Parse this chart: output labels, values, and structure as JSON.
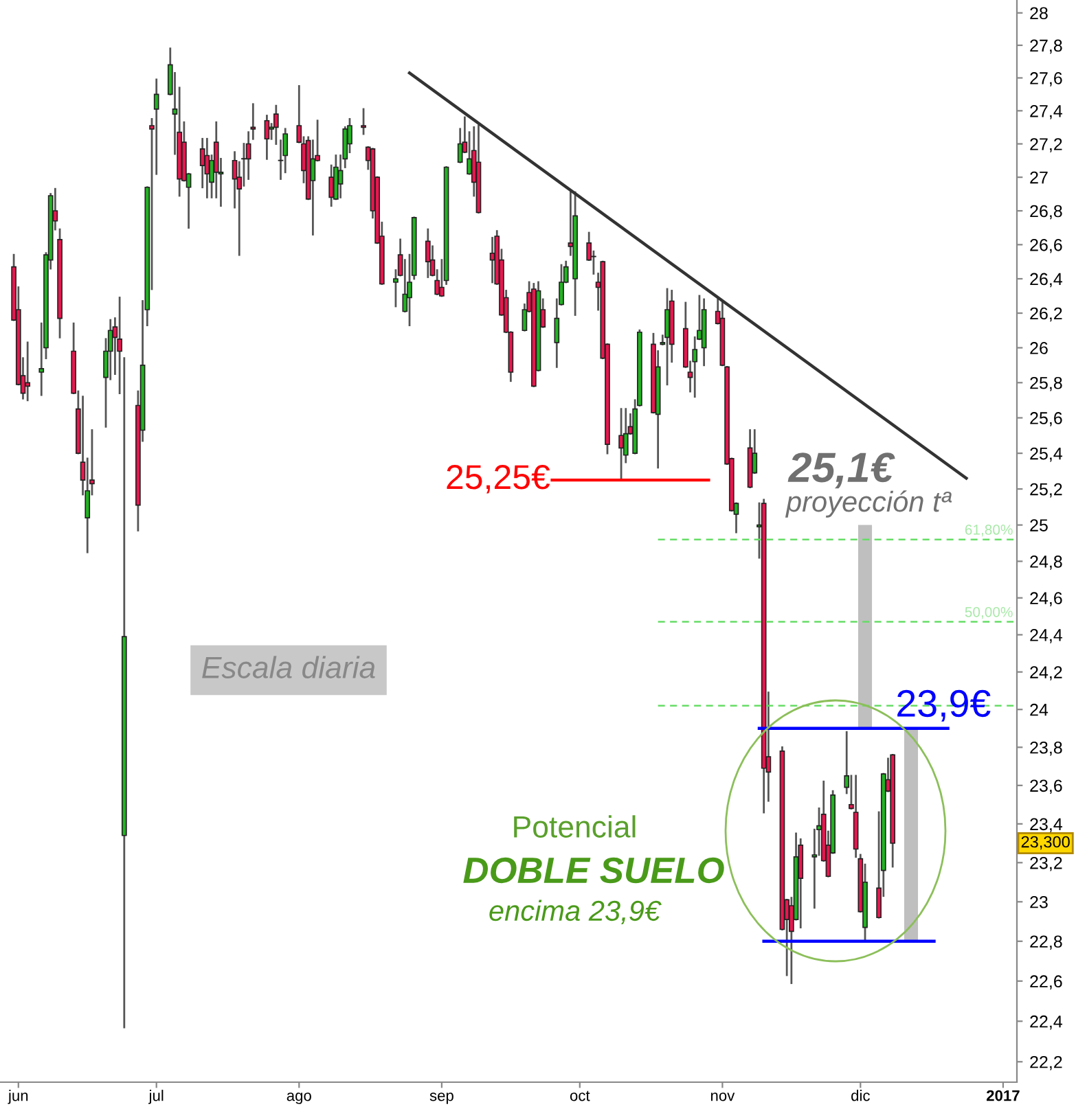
{
  "chart_data": {
    "type": "candlestick",
    "x": [
      "2016-05-31",
      "2016-06-01",
      "2016-06-02",
      "2016-06-03",
      "2016-06-06",
      "2016-06-07",
      "2016-06-08",
      "2016-06-09",
      "2016-06-10",
      "2016-06-13",
      "2016-06-14",
      "2016-06-15",
      "2016-06-16",
      "2016-06-17",
      "2016-06-20",
      "2016-06-21",
      "2016-06-22",
      "2016-06-23",
      "2016-06-24",
      "2016-06-27",
      "2016-06-28",
      "2016-06-29",
      "2016-06-30",
      "2016-07-01",
      "2016-07-04",
      "2016-07-05",
      "2016-07-06",
      "2016-07-07",
      "2016-07-08",
      "2016-07-11",
      "2016-07-12",
      "2016-07-13",
      "2016-07-14",
      "2016-07-15",
      "2016-07-18",
      "2016-07-19",
      "2016-07-20",
      "2016-07-21",
      "2016-07-22",
      "2016-07-25",
      "2016-07-26",
      "2016-07-27",
      "2016-07-28",
      "2016-07-29",
      "2016-08-01",
      "2016-08-02",
      "2016-08-03",
      "2016-08-04",
      "2016-08-05",
      "2016-08-08",
      "2016-08-09",
      "2016-08-10",
      "2016-08-11",
      "2016-08-12",
      "2016-08-15",
      "2016-08-16",
      "2016-08-17",
      "2016-08-18",
      "2016-08-19",
      "2016-08-22",
      "2016-08-23",
      "2016-08-24",
      "2016-08-25",
      "2016-08-26",
      "2016-08-29",
      "2016-08-30",
      "2016-08-31",
      "2016-09-01",
      "2016-09-02",
      "2016-09-05",
      "2016-09-06",
      "2016-09-07",
      "2016-09-08",
      "2016-09-09",
      "2016-09-12",
      "2016-09-13",
      "2016-09-14",
      "2016-09-15",
      "2016-09-16",
      "2016-09-19",
      "2016-09-20",
      "2016-09-21",
      "2016-09-22",
      "2016-09-23",
      "2016-09-26",
      "2016-09-27",
      "2016-09-28",
      "2016-09-29",
      "2016-09-30",
      "2016-10-03",
      "2016-10-04",
      "2016-10-05",
      "2016-10-06",
      "2016-10-07",
      "2016-10-10",
      "2016-10-11",
      "2016-10-12",
      "2016-10-13",
      "2016-10-14",
      "2016-10-17",
      "2016-10-18",
      "2016-10-19",
      "2016-10-20",
      "2016-10-21",
      "2016-10-24",
      "2016-10-25",
      "2016-10-26",
      "2016-10-27",
      "2016-10-28",
      "2016-10-31",
      "2016-11-01",
      "2016-11-02",
      "2016-11-03",
      "2016-11-04",
      "2016-11-07",
      "2016-11-08",
      "2016-11-09",
      "2016-11-10",
      "2016-11-11",
      "2016-11-14",
      "2016-11-15",
      "2016-11-16",
      "2016-11-17",
      "2016-11-18",
      "2016-11-21",
      "2016-11-22",
      "2016-11-23",
      "2016-11-24",
      "2016-11-25",
      "2016-11-28",
      "2016-11-29",
      "2016-11-30",
      "2016-12-01",
      "2016-12-02",
      "2016-12-05",
      "2016-12-06",
      "2016-12-07",
      "2016-12-08"
    ],
    "ohlc": [
      [
        26.47,
        26.54,
        26.16,
        26.16
      ],
      [
        26.22,
        26.35,
        25.79,
        25.79
      ],
      [
        25.84,
        25.94,
        25.71,
        25.74
      ],
      [
        25.8,
        26.03,
        25.7,
        25.78
      ],
      [
        25.86,
        26.14,
        25.73,
        25.88
      ],
      [
        26.0,
        26.55,
        25.94,
        26.54
      ],
      [
        26.51,
        26.9,
        26.46,
        26.89
      ],
      [
        26.8,
        26.93,
        26.69,
        26.74
      ],
      [
        26.63,
        26.69,
        26.06,
        26.17
      ],
      [
        25.98,
        26.14,
        25.74,
        25.74
      ],
      [
        25.65,
        25.75,
        25.4,
        25.4
      ],
      [
        25.35,
        25.72,
        25.17,
        25.25
      ],
      [
        25.04,
        25.37,
        24.85,
        25.19
      ],
      [
        25.25,
        25.53,
        25.17,
        25.23
      ],
      [
        25.83,
        26.05,
        25.55,
        25.98
      ],
      [
        25.98,
        26.16,
        25.82,
        26.1
      ],
      [
        26.12,
        26.17,
        25.85,
        26.06
      ],
      [
        26.05,
        26.29,
        25.74,
        25.98
      ],
      [
        23.34,
        25.94,
        22.37,
        24.39
      ],
      [
        25.67,
        25.75,
        24.97,
        25.11
      ],
      [
        25.53,
        26.27,
        25.47,
        25.9
      ],
      [
        26.22,
        26.94,
        26.13,
        26.94
      ],
      [
        27.31,
        27.35,
        26.34,
        27.29
      ],
      [
        27.41,
        27.59,
        27.02,
        27.5
      ],
      [
        27.5,
        27.78,
        27.5,
        27.68
      ],
      [
        27.38,
        27.63,
        27.14,
        27.41
      ],
      [
        27.27,
        27.54,
        26.89,
        26.99
      ],
      [
        27.21,
        27.33,
        26.98,
        26.98
      ],
      [
        26.94,
        27.02,
        26.7,
        27.02
      ],
      [
        27.17,
        27.23,
        26.94,
        27.07
      ],
      [
        27.13,
        27.23,
        26.88,
        27.02
      ],
      [
        26.97,
        27.13,
        26.88,
        27.1
      ],
      [
        27.21,
        27.33,
        26.88,
        27.03
      ],
      [
        27.02,
        27.11,
        26.83,
        27.03
      ],
      [
        27.1,
        27.15,
        26.82,
        26.99
      ],
      [
        27.0,
        27.09,
        26.54,
        26.93
      ],
      [
        27.11,
        27.2,
        26.95,
        27.11
      ],
      [
        27.2,
        27.27,
        26.99,
        27.11
      ],
      [
        27.3,
        27.44,
        27.23,
        27.29
      ],
      [
        27.34,
        27.37,
        27.11,
        27.23
      ],
      [
        27.29,
        27.32,
        27.23,
        27.3
      ],
      [
        27.38,
        27.43,
        27.2,
        27.3
      ],
      [
        27.1,
        27.22,
        26.99,
        27.1
      ],
      [
        27.13,
        27.29,
        27.03,
        27.26
      ],
      [
        27.31,
        27.55,
        27.21,
        27.21
      ],
      [
        27.2,
        27.24,
        26.97,
        27.04
      ],
      [
        27.22,
        27.24,
        26.87,
        26.87
      ],
      [
        26.98,
        27.22,
        26.66,
        27.11
      ],
      [
        27.13,
        27.34,
        27.1,
        27.1
      ],
      [
        27.0,
        27.07,
        26.83,
        26.88
      ],
      [
        26.87,
        27.13,
        26.87,
        27.06
      ],
      [
        26.96,
        27.13,
        26.88,
        27.04
      ],
      [
        27.11,
        27.3,
        27.06,
        27.29
      ],
      [
        27.2,
        27.35,
        27.15,
        27.31
      ],
      [
        27.31,
        27.41,
        27.26,
        27.3
      ],
      [
        27.18,
        27.18,
        27.05,
        27.1
      ],
      [
        27.17,
        27.17,
        26.76,
        26.8
      ],
      [
        27.0,
        27.0,
        26.61,
        26.61
      ],
      [
        26.65,
        26.73,
        26.37,
        26.37
      ],
      [
        26.38,
        26.45,
        26.24,
        26.4
      ],
      [
        26.54,
        26.63,
        26.42,
        26.42
      ],
      [
        26.21,
        26.51,
        26.21,
        26.31
      ],
      [
        26.29,
        26.54,
        26.13,
        26.38
      ],
      [
        26.42,
        26.76,
        26.4,
        26.76
      ],
      [
        26.62,
        26.69,
        26.41,
        26.5
      ],
      [
        26.51,
        26.59,
        26.42,
        26.42
      ],
      [
        26.39,
        26.45,
        26.31,
        26.31
      ],
      [
        26.35,
        26.51,
        26.3,
        26.3
      ],
      [
        26.39,
        27.06,
        26.37,
        27.06
      ],
      [
        27.09,
        27.29,
        27.09,
        27.2
      ],
      [
        27.21,
        27.36,
        27.15,
        27.15
      ],
      [
        27.02,
        27.27,
        27.02,
        27.11
      ],
      [
        27.16,
        27.3,
        26.89,
        26.97
      ],
      [
        27.09,
        27.31,
        26.79,
        26.79
      ],
      [
        26.55,
        26.64,
        26.38,
        26.51
      ],
      [
        26.65,
        26.68,
        26.37,
        26.37
      ],
      [
        26.51,
        26.57,
        26.19,
        26.19
      ],
      [
        26.29,
        26.33,
        26.09,
        26.09
      ],
      [
        26.09,
        26.09,
        25.81,
        25.86
      ],
      [
        26.1,
        26.25,
        26.1,
        26.22
      ],
      [
        26.32,
        26.38,
        26.21,
        26.21
      ],
      [
        26.34,
        26.37,
        25.78,
        25.78
      ],
      [
        25.87,
        26.38,
        25.87,
        26.33
      ],
      [
        26.22,
        26.28,
        26.12,
        26.12
      ],
      [
        26.03,
        26.28,
        25.89,
        26.17
      ],
      [
        26.25,
        26.48,
        26.25,
        26.38
      ],
      [
        26.38,
        26.5,
        26.38,
        26.47
      ],
      [
        26.61,
        26.91,
        26.54,
        26.59
      ],
      [
        26.4,
        26.91,
        26.19,
        26.77
      ],
      [
        26.61,
        26.67,
        26.51,
        26.51
      ],
      [
        26.53,
        26.56,
        26.43,
        26.53
      ],
      [
        26.38,
        26.43,
        26.22,
        26.35
      ],
      [
        26.5,
        26.5,
        25.94,
        25.94
      ],
      [
        26.02,
        26.02,
        25.4,
        25.45
      ],
      [
        25.5,
        25.65,
        25.25,
        25.43
      ],
      [
        25.39,
        25.65,
        25.35,
        25.51
      ],
      [
        25.55,
        25.62,
        25.51,
        25.51
      ],
      [
        25.4,
        25.7,
        25.4,
        25.65
      ],
      [
        25.67,
        26.1,
        25.67,
        26.09
      ],
      [
        26.02,
        26.08,
        25.63,
        25.63
      ],
      [
        25.62,
        25.98,
        25.32,
        25.89
      ],
      [
        26.02,
        26.07,
        26.02,
        26.03
      ],
      [
        26.06,
        26.34,
        25.79,
        26.22
      ],
      [
        26.27,
        26.33,
        25.92,
        26.02
      ],
      [
        26.11,
        26.26,
        25.89,
        25.89
      ],
      [
        25.86,
        25.92,
        25.75,
        25.83
      ],
      [
        25.92,
        26.06,
        25.72,
        25.99
      ],
      [
        26.05,
        26.3,
        26.05,
        26.1
      ],
      [
        26.0,
        26.28,
        25.9,
        26.22
      ],
      [
        26.21,
        26.28,
        26.14,
        26.14
      ],
      [
        26.17,
        26.27,
        25.9,
        25.9
      ],
      [
        25.89,
        25.89,
        25.34,
        25.34
      ],
      [
        25.37,
        25.37,
        25.08,
        25.08
      ],
      [
        25.06,
        25.12,
        24.96,
        25.12
      ],
      [
        25.43,
        25.53,
        25.21,
        25.21
      ],
      [
        25.29,
        25.53,
        25.29,
        25.4
      ],
      [
        24.99,
        25.12,
        24.82,
        25.0
      ],
      [
        25.12,
        25.14,
        23.46,
        23.69
      ],
      [
        23.75,
        24.09,
        23.52,
        23.67
      ],
      [
        23.78,
        23.8,
        22.86,
        22.86
      ],
      [
        23.01,
        23.01,
        22.63,
        22.91
      ],
      [
        22.98,
        23.02,
        22.59,
        22.85
      ],
      [
        22.91,
        23.35,
        22.91,
        23.23
      ],
      [
        23.29,
        23.32,
        22.87,
        23.12
      ],
      [
        23.23,
        23.37,
        22.97,
        23.24
      ],
      [
        23.37,
        23.48,
        23.24,
        23.39
      ],
      [
        23.45,
        23.62,
        23.21,
        23.21
      ],
      [
        23.29,
        23.36,
        23.13,
        23.13
      ],
      [
        23.25,
        23.57,
        23.25,
        23.55
      ],
      [
        23.59,
        23.88,
        23.56,
        23.65
      ],
      [
        23.5,
        23.65,
        23.48,
        23.48
      ],
      [
        23.46,
        23.65,
        23.23,
        23.27
      ],
      [
        23.22,
        23.24,
        22.95,
        22.95
      ],
      [
        22.87,
        23.19,
        22.8,
        23.1
      ],
      [
        23.07,
        23.46,
        22.92,
        22.92
      ],
      [
        23.16,
        23.66,
        23.03,
        23.66
      ],
      [
        23.63,
        23.74,
        23.57,
        23.57
      ],
      [
        23.76,
        23.76,
        23.18,
        23.3
      ]
    ],
    "colors": [
      "#e8174f",
      "#e8174f",
      "#e8174f",
      "#e8174f",
      "#22b422",
      "#22b422",
      "#22b422",
      "#e8174f",
      "#e8174f",
      "#e8174f",
      "#e8174f",
      "#e8174f",
      "#22b422",
      "#e8174f",
      "#22b422",
      "#22b422",
      "#e8174f",
      "#e8174f",
      "#22b422",
      "#e8174f",
      "#22b422",
      "#22b422",
      "#e8174f",
      "#22b422",
      "#22b422",
      "#22b422",
      "#e8174f",
      "#e8174f",
      "#22b422",
      "#e8174f",
      "#e8174f",
      "#22b422",
      "#e8174f",
      "#22b422",
      "#e8174f",
      "#e8174f",
      "#22b422",
      "#e8174f",
      "#e8174f",
      "#e8174f",
      "#22b422",
      "#e8174f",
      "#22b422",
      "#22b422",
      "#e8174f",
      "#e8174f",
      "#e8174f",
      "#22b422",
      "#e8174f",
      "#e8174f",
      "#22b422",
      "#22b422",
      "#22b422",
      "#22b422",
      "#e8174f",
      "#e8174f",
      "#e8174f",
      "#e8174f",
      "#e8174f",
      "#22b422",
      "#e8174f",
      "#22b422",
      "#22b422",
      "#22b422",
      "#e8174f",
      "#e8174f",
      "#e8174f",
      "#e8174f",
      "#22b422",
      "#22b422",
      "#e8174f",
      "#22b422",
      "#e8174f",
      "#e8174f",
      "#e8174f",
      "#e8174f",
      "#e8174f",
      "#e8174f",
      "#e8174f",
      "#22b422",
      "#e8174f",
      "#e8174f",
      "#22b422",
      "#e8174f",
      "#22b422",
      "#22b422",
      "#22b422",
      "#e8174f",
      "#22b422",
      "#e8174f",
      "#22b422",
      "#e8174f",
      "#e8174f",
      "#e8174f",
      "#e8174f",
      "#22b422",
      "#e8174f",
      "#22b422",
      "#22b422",
      "#e8174f",
      "#22b422",
      "#22b422",
      "#22b422",
      "#e8174f",
      "#e8174f",
      "#e8174f",
      "#22b422",
      "#22b422",
      "#22b422",
      "#e8174f",
      "#e8174f",
      "#e8174f",
      "#e8174f",
      "#22b422",
      "#e8174f",
      "#22b422",
      "#22b422",
      "#e8174f",
      "#e8174f",
      "#e8174f",
      "#e8174f",
      "#e8174f",
      "#22b422",
      "#e8174f",
      "#22b422",
      "#22b422",
      "#e8174f",
      "#e8174f",
      "#22b422",
      "#22b422",
      "#e8174f",
      "#e8174f",
      "#e8174f",
      "#22b422",
      "#e8174f",
      "#22b422",
      "#e8174f",
      "#e8174f"
    ],
    "series": [
      {
        "type": "bar",
        "x": [
          "2016-12-02",
          "2016-12-12"
        ],
        "base": [
          23.9,
          22.8
        ],
        "values": [
          1.1,
          1.1
        ],
        "color": "#b4b4b4"
      },
      {
        "type": "line",
        "x": [
          "2016-08-25",
          "2016-12-24"
        ],
        "values": [
          27.63,
          25.26
        ],
        "color": "#333333",
        "line_style": "solid"
      },
      {
        "type": "line",
        "x": [
          "2016-09-25",
          "2016-10-29"
        ],
        "values": [
          25.25,
          25.25
        ],
        "color": "#ff0000",
        "line_style": "solid"
      },
      {
        "type": "line",
        "x": [
          "2016-11-09",
          "2016-12-20"
        ],
        "values": [
          23.9,
          23.9
        ],
        "color": "#0000ff",
        "line_style": "solid"
      },
      {
        "type": "line",
        "x": [
          "2016-11-10",
          "2016-12-17"
        ],
        "values": [
          22.8,
          22.8
        ],
        "color": "#0000ff",
        "line_style": "solid"
      },
      {
        "type": "line",
        "x": [
          "2016-10-18",
          "2017-01-04"
        ],
        "values": [
          24.92,
          24.92
        ],
        "color": "#66dd66",
        "line_style": "dashed"
      },
      {
        "type": "line",
        "x": [
          "2016-10-18",
          "2017-01-04"
        ],
        "values": [
          24.47,
          24.47
        ],
        "color": "#66dd66",
        "line_style": "dashed"
      },
      {
        "type": "line",
        "x": [
          "2016-10-18",
          "2017-01-04"
        ],
        "values": [
          24.02,
          24.02
        ],
        "color": "#66dd66",
        "line_style": "dashed"
      }
    ],
    "annotations": [
      {
        "text": "25,25€",
        "x": "2016-09-25",
        "y": 25.25
      },
      {
        "text": "23,9€",
        "x": "2016-12-19",
        "y": 23.9
      },
      {
        "text": "61,80%",
        "x": "2017-01-04",
        "y": 24.92
      },
      {
        "text": "50,00%",
        "x": "2017-01-04",
        "y": 24.47
      },
      "25,1€",
      "proyección tª",
      "Escala diaria",
      "Potencial",
      "DOBLE SUELO",
      "encima 23,9€",
      "23,300"
    ],
    "log": true,
    "ylim": [
      22.1,
      28.08
    ],
    "yticks": [
      {
        "value": 22.2,
        "label": "22,2"
      },
      {
        "value": 22.4,
        "label": "22,4"
      },
      {
        "value": 22.6,
        "label": "22,6"
      },
      {
        "value": 22.8,
        "label": "22,8"
      },
      23,
      {
        "value": 23.2,
        "label": "23,2"
      },
      {
        "value": 23.4,
        "label": "23,4"
      },
      {
        "value": 23.6,
        "label": "23,6"
      },
      {
        "value": 23.8,
        "label": "23,8"
      },
      24,
      {
        "value": 24.2,
        "label": "24,2"
      },
      {
        "value": 24.4,
        "label": "24,4"
      },
      {
        "value": 24.6,
        "label": "24,6"
      },
      {
        "value": 24.8,
        "label": "24,8"
      },
      25,
      {
        "value": 25.2,
        "label": "25,2"
      },
      {
        "value": 25.4,
        "label": "25,4"
      },
      {
        "value": 25.6,
        "label": "25,6"
      },
      {
        "value": 25.8,
        "label": "25,8"
      },
      26,
      {
        "value": 26.2,
        "label": "26,2"
      },
      {
        "value": 26.4,
        "label": "26,4"
      },
      {
        "value": 26.6,
        "label": "26,6"
      },
      {
        "value": 26.8,
        "label": "26,8"
      },
      27,
      {
        "value": 27.2,
        "label": "27,2"
      },
      {
        "value": 27.4,
        "label": "27,4"
      },
      {
        "value": 27.6,
        "label": "27,6"
      },
      {
        "value": 27.8,
        "label": "27,8"
      },
      28
    ],
    "xlim": [
      "2016-05-28",
      "2017-01-04"
    ],
    "xticks": [
      {
        "value": "2016-06-01",
        "label": "jun"
      },
      {
        "value": "2016-07-01",
        "label": "jul"
      },
      {
        "value": "2016-08-01",
        "label": "ago"
      },
      {
        "value": "2016-09-01",
        "label": "sep"
      },
      {
        "value": "2016-10-01",
        "label": "oct"
      },
      {
        "value": "2016-11-01",
        "label": "nov"
      },
      {
        "value": "2016-12-01",
        "label": "dic"
      },
      {
        "value": "2017-01-01",
        "label": "2017"
      }
    ],
    "grid": false,
    "legend": false
  }
}
